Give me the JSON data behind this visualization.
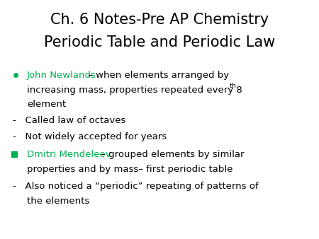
{
  "title_line1": "Ch. 6 Notes-Pre AP Chemistry",
  "title_line2": "Periodic Table and Periodic Law",
  "title_fontsize": 15,
  "background_color": "#ffffff",
  "green_color": "#00b050",
  "black_color": "#000000",
  "bullet1_green": "John Newlands",
  "bullet2_green": "Dmitri Mendeleev",
  "body_fontsize": 9.5
}
